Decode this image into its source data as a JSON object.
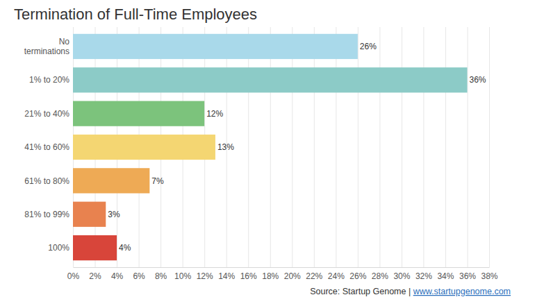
{
  "chart_data": {
    "type": "bar",
    "orientation": "horizontal",
    "title": "Termination of Full-Time Employees",
    "categories": [
      "No terminations",
      "1% to 20%",
      "21% to 40%",
      "41% to 60%",
      "61% to 80%",
      "81% to 99%",
      "100%"
    ],
    "values": [
      26,
      36,
      12,
      13,
      7,
      3,
      4
    ],
    "value_labels": [
      "26%",
      "36%",
      "12%",
      "13%",
      "7%",
      "3%",
      "4%"
    ],
    "data_labels": true,
    "colors": [
      "#a9d9ea",
      "#8ccbc7",
      "#7cc37c",
      "#f4d672",
      "#eeaa55",
      "#e8824f",
      "#d8453a"
    ],
    "xlim": [
      0,
      38
    ],
    "xticks": [
      {
        "value": 0,
        "label": "0%"
      },
      {
        "value": 2,
        "label": "2%"
      },
      {
        "value": 4,
        "label": "4%"
      },
      {
        "value": 6,
        "label": "6%"
      },
      {
        "value": 8,
        "label": "8%"
      },
      {
        "value": 10,
        "label": "10%"
      },
      {
        "value": 12,
        "label": "12%"
      },
      {
        "value": 14,
        "label": "14%"
      },
      {
        "value": 16,
        "label": "16%"
      },
      {
        "value": 18,
        "label": "18%"
      },
      {
        "value": 20,
        "label": "20%"
      },
      {
        "value": 22,
        "label": "22%"
      },
      {
        "value": 24,
        "label": "24%"
      },
      {
        "value": 26,
        "label": "26%"
      },
      {
        "value": 28,
        "label": "28%"
      },
      {
        "value": 30,
        "label": "30%"
      },
      {
        "value": 32,
        "label": "32%"
      },
      {
        "value": 34,
        "label": "34%"
      },
      {
        "value": 36,
        "label": "36%"
      },
      {
        "value": 38,
        "label": "38%"
      }
    ],
    "grid": true,
    "source": "Source: Startup Genome | www.startupgenome.com"
  }
}
